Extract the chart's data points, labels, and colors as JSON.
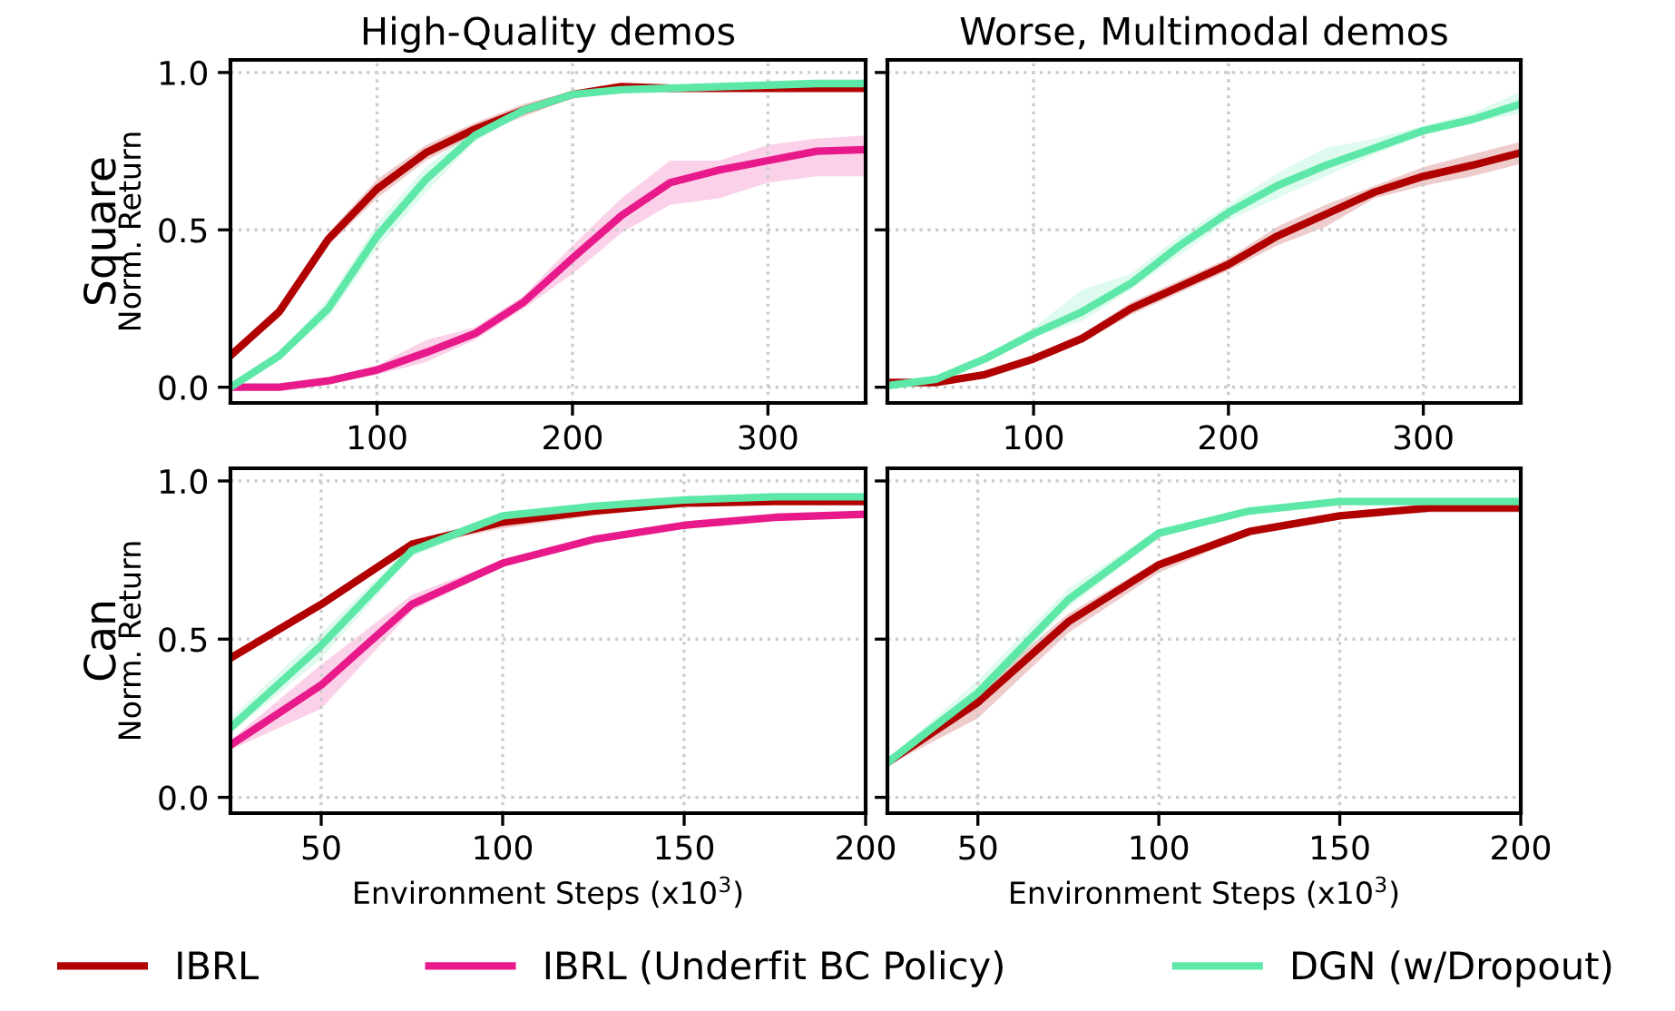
{
  "chart_data": [
    {
      "type": "line",
      "title": "High-Quality demos",
      "ylabel": "Norm. Return",
      "annotations": [
        "Square"
      ],
      "legend": "bottom",
      "grid": true,
      "xlim": [
        25,
        350
      ],
      "xticks": [
        100,
        200,
        300
      ],
      "ylim": [
        -0.05,
        1.04
      ],
      "yticks": [
        {
          "value": 0,
          "label": "0.0"
        },
        {
          "value": 0.5,
          "label": "0.5"
        },
        {
          "value": 1,
          "label": "1.0"
        }
      ],
      "x": [
        25,
        50,
        75,
        100,
        125,
        150,
        175,
        200,
        225,
        250,
        275,
        300,
        325,
        350
      ],
      "series": [
        {
          "name": "IBRL",
          "color": "#b00000",
          "values": [
            0.1,
            0.24,
            0.47,
            0.63,
            0.745,
            0.82,
            0.88,
            0.93,
            0.955,
            0.95,
            0.95,
            0.95,
            0.95,
            0.95
          ],
          "lower": [
            0.09,
            0.22,
            0.45,
            0.6,
            0.72,
            0.8,
            0.86,
            0.92,
            0.94,
            0.94,
            0.94,
            0.94,
            0.94,
            0.94
          ],
          "upper": [
            0.11,
            0.26,
            0.49,
            0.66,
            0.77,
            0.84,
            0.9,
            0.94,
            0.96,
            0.96,
            0.96,
            0.96,
            0.96,
            0.96
          ]
        },
        {
          "name": "IBRL (Underfit BC Policy)",
          "color": "#e8198b",
          "values": [
            0.0,
            0.0,
            0.02,
            0.055,
            0.11,
            0.17,
            0.27,
            0.41,
            0.545,
            0.65,
            0.69,
            0.72,
            0.75,
            0.755
          ],
          "lower": [
            0.0,
            0.0,
            0.01,
            0.04,
            0.08,
            0.15,
            0.25,
            0.36,
            0.49,
            0.58,
            0.6,
            0.65,
            0.67,
            0.67
          ],
          "upper": [
            0.0,
            0.01,
            0.03,
            0.07,
            0.15,
            0.19,
            0.29,
            0.45,
            0.6,
            0.72,
            0.72,
            0.77,
            0.79,
            0.8
          ]
        },
        {
          "name": "DGN (w/Dropout)",
          "color": "#5ee8a8",
          "values": [
            0.0,
            0.1,
            0.25,
            0.48,
            0.66,
            0.8,
            0.88,
            0.93,
            0.945,
            0.95,
            0.955,
            0.96,
            0.965,
            0.965
          ],
          "lower": [
            0.0,
            0.09,
            0.22,
            0.44,
            0.62,
            0.78,
            0.87,
            0.92,
            0.94,
            0.94,
            0.95,
            0.95,
            0.96,
            0.96
          ],
          "upper": [
            0.01,
            0.11,
            0.28,
            0.52,
            0.7,
            0.82,
            0.89,
            0.94,
            0.95,
            0.96,
            0.96,
            0.97,
            0.97,
            0.97
          ]
        }
      ]
    },
    {
      "type": "line",
      "title": "Worse, Multimodal demos",
      "grid": true,
      "tick_labels": "x",
      "xlim": [
        25,
        350
      ],
      "xticks": [
        100,
        200,
        300
      ],
      "ylim": [
        -0.05,
        1.04
      ],
      "yticks": [
        {
          "value": 0,
          "label": null
        },
        {
          "value": 0.5,
          "label": null
        },
        {
          "value": 1,
          "label": null
        }
      ],
      "x": [
        25,
        50,
        75,
        100,
        125,
        150,
        175,
        200,
        225,
        250,
        275,
        300,
        325,
        350
      ],
      "series": [
        {
          "color": "#b00000",
          "values": [
            0.015,
            0.015,
            0.04,
            0.09,
            0.155,
            0.25,
            0.32,
            0.39,
            0.48,
            0.55,
            0.62,
            0.67,
            0.705,
            0.745
          ],
          "lower": [
            0.005,
            0.01,
            0.03,
            0.08,
            0.14,
            0.23,
            0.3,
            0.37,
            0.45,
            0.51,
            0.6,
            0.64,
            0.67,
            0.71
          ],
          "upper": [
            0.02,
            0.02,
            0.05,
            0.1,
            0.17,
            0.27,
            0.34,
            0.41,
            0.51,
            0.58,
            0.64,
            0.7,
            0.74,
            0.78
          ]
        },
        {
          "color": "#5ee8a8",
          "values": [
            0.005,
            0.025,
            0.09,
            0.17,
            0.24,
            0.33,
            0.45,
            0.555,
            0.64,
            0.705,
            0.76,
            0.815,
            0.85,
            0.9
          ],
          "lower": [
            0.0,
            0.02,
            0.08,
            0.16,
            0.21,
            0.31,
            0.42,
            0.53,
            0.6,
            0.67,
            0.74,
            0.8,
            0.84,
            0.87
          ],
          "upper": [
            0.01,
            0.03,
            0.1,
            0.19,
            0.31,
            0.36,
            0.48,
            0.58,
            0.68,
            0.76,
            0.79,
            0.83,
            0.87,
            0.94
          ]
        }
      ]
    },
    {
      "type": "line",
      "ylabel": "Norm. Return",
      "xlabel": "Environment Steps (x10$^{3}$)",
      "annotations": [
        "Can"
      ],
      "grid": true,
      "xlim": [
        25,
        200
      ],
      "xticks": [
        50,
        100,
        150,
        200
      ],
      "ylim": [
        -0.05,
        1.04
      ],
      "yticks": [
        {
          "value": 0,
          "label": "0.0"
        },
        {
          "value": 0.5,
          "label": "0.5"
        },
        {
          "value": 1,
          "label": "1.0"
        }
      ],
      "x": [
        25,
        50,
        75,
        100,
        125,
        150,
        175,
        200
      ],
      "series": [
        {
          "color": "#b00000",
          "values": [
            0.44,
            0.61,
            0.8,
            0.87,
            0.905,
            0.93,
            0.935,
            0.935
          ],
          "lower": [
            0.43,
            0.6,
            0.79,
            0.85,
            0.89,
            0.92,
            0.93,
            0.93
          ],
          "upper": [
            0.45,
            0.62,
            0.81,
            0.88,
            0.92,
            0.94,
            0.94,
            0.94
          ]
        },
        {
          "color": "#e8198b",
          "values": [
            0.165,
            0.355,
            0.61,
            0.74,
            0.815,
            0.86,
            0.885,
            0.895
          ],
          "lower": [
            0.15,
            0.28,
            0.59,
            0.73,
            0.81,
            0.85,
            0.88,
            0.89
          ],
          "upper": [
            0.18,
            0.42,
            0.64,
            0.75,
            0.82,
            0.87,
            0.89,
            0.9
          ]
        },
        {
          "color": "#5ee8a8",
          "values": [
            0.22,
            0.48,
            0.78,
            0.89,
            0.92,
            0.94,
            0.95,
            0.95
          ],
          "lower": [
            0.2,
            0.44,
            0.76,
            0.88,
            0.91,
            0.93,
            0.94,
            0.94
          ],
          "upper": [
            0.25,
            0.52,
            0.8,
            0.9,
            0.93,
            0.95,
            0.96,
            0.96
          ]
        }
      ]
    },
    {
      "type": "line",
      "xlabel": "Environment Steps (x10$^{3}$)",
      "grid": true,
      "tick_labels": "x",
      "xlim": [
        25,
        200
      ],
      "xticks": [
        50,
        100,
        150,
        200
      ],
      "ylim": [
        -0.05,
        1.04
      ],
      "yticks": [
        {
          "value": 0,
          "label": null
        },
        {
          "value": 0.5,
          "label": null
        },
        {
          "value": 1,
          "label": null
        }
      ],
      "x": [
        25,
        50,
        75,
        100,
        125,
        150,
        175,
        200
      ],
      "series": [
        {
          "color": "#b00000",
          "values": [
            0.11,
            0.3,
            0.555,
            0.735,
            0.84,
            0.89,
            0.915,
            0.915
          ],
          "lower": [
            0.1,
            0.25,
            0.52,
            0.71,
            0.83,
            0.88,
            0.9,
            0.9
          ],
          "upper": [
            0.12,
            0.34,
            0.58,
            0.75,
            0.85,
            0.9,
            0.925,
            0.925
          ]
        },
        {
          "color": "#5ee8a8",
          "values": [
            0.11,
            0.33,
            0.625,
            0.835,
            0.905,
            0.935,
            0.935,
            0.935
          ],
          "lower": [
            0.1,
            0.3,
            0.6,
            0.82,
            0.9,
            0.93,
            0.93,
            0.93
          ],
          "upper": [
            0.12,
            0.37,
            0.66,
            0.85,
            0.91,
            0.94,
            0.94,
            0.94
          ]
        }
      ]
    }
  ]
}
